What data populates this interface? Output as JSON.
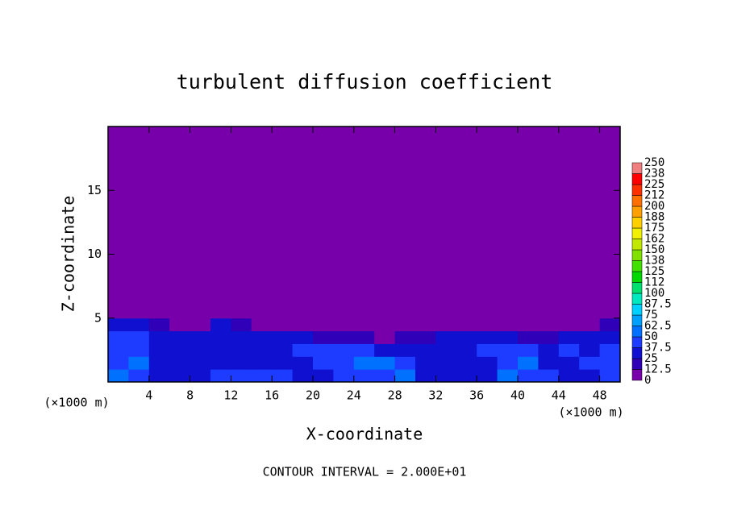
{
  "chart_data": {
    "type": "contour",
    "title": "turbulent diffusion coefficient",
    "xlabel": "X-coordinate",
    "ylabel": "Z-coordinate",
    "x_unit": "(×1000 m)",
    "footnote": "CONTOUR INTERVAL = 2.000E+01",
    "xlim": [
      0,
      50
    ],
    "ylim": [
      0,
      20
    ],
    "xticks": [
      4,
      8,
      12,
      16,
      20,
      24,
      28,
      32,
      36,
      40,
      44,
      48
    ],
    "yticks": [
      5,
      10,
      15
    ],
    "xbins": [
      0,
      2,
      4,
      6,
      8,
      10,
      12,
      14,
      16,
      18,
      20,
      22,
      24,
      26,
      28,
      30,
      32,
      34,
      36,
      38,
      40,
      42,
      44,
      46,
      48,
      50
    ],
    "zbins": [
      0,
      1,
      2,
      3,
      4,
      5,
      20
    ],
    "values": [
      [
        50,
        45,
        30,
        30,
        30,
        40,
        40,
        45,
        40,
        35,
        30,
        40,
        45,
        45,
        55,
        35,
        35,
        30,
        35,
        50,
        45,
        40,
        35,
        35,
        45
      ],
      [
        40,
        50,
        35,
        30,
        30,
        30,
        35,
        35,
        30,
        30,
        45,
        45,
        50,
        50,
        40,
        30,
        30,
        30,
        35,
        45,
        50,
        35,
        35,
        40,
        40
      ],
      [
        45,
        40,
        35,
        30,
        30,
        30,
        35,
        35,
        35,
        45,
        40,
        45,
        40,
        35,
        35,
        30,
        30,
        35,
        40,
        45,
        45,
        30,
        40,
        35,
        45
      ],
      [
        40,
        45,
        30,
        30,
        30,
        35,
        35,
        30,
        30,
        25,
        20,
        20,
        15,
        10,
        15,
        20,
        25,
        30,
        30,
        30,
        20,
        20,
        30,
        30,
        30
      ],
      [
        30,
        30,
        20,
        5,
        5,
        25,
        15,
        0,
        0,
        0,
        0,
        0,
        0,
        0,
        0,
        0,
        0,
        0,
        0,
        10,
        0,
        0,
        5,
        10,
        15
      ],
      [
        0,
        0,
        0,
        0,
        0,
        0,
        0,
        0,
        0,
        0,
        0,
        0,
        0,
        0,
        0,
        0,
        0,
        0,
        0,
        0,
        0,
        0,
        0,
        0,
        0
      ]
    ],
    "colorbar": {
      "levels": [
        0,
        12.5,
        25,
        37.5,
        50,
        62.5,
        75,
        87.5,
        100,
        112,
        125,
        138,
        150,
        162,
        175,
        188,
        200,
        212,
        225,
        238,
        250
      ],
      "colors": [
        "#7800aa",
        "#3000b8",
        "#1010d0",
        "#1e3cff",
        "#0070ff",
        "#00a0ff",
        "#00d0ff",
        "#00e8c0",
        "#00e070",
        "#00d800",
        "#40e000",
        "#80e000",
        "#c0e800",
        "#f0f000",
        "#ffd000",
        "#ffa000",
        "#ff7000",
        "#ff3000",
        "#ff0000",
        "#f08080"
      ]
    }
  }
}
